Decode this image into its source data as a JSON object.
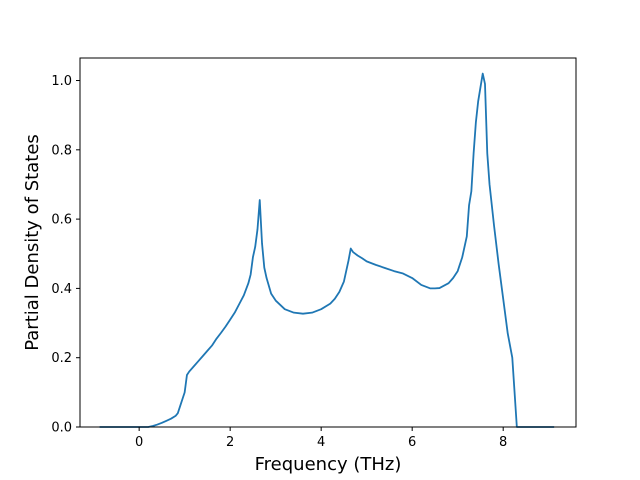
{
  "chart_data": {
    "type": "line",
    "title": "",
    "xlabel": "Frequency (THz)",
    "ylabel": "Partial Density of States",
    "xlim": [
      -1.3,
      9.6
    ],
    "ylim": [
      0.0,
      1.065
    ],
    "x_ticks": [
      0,
      2,
      4,
      6,
      8
    ],
    "x_tick_labels": [
      "0",
      "2",
      "4",
      "6",
      "8"
    ],
    "y_ticks": [
      0.0,
      0.2,
      0.4,
      0.6,
      0.8,
      1.0
    ],
    "y_tick_labels": [
      "0.0",
      "0.2",
      "0.4",
      "0.6",
      "0.8",
      "1.0"
    ],
    "grid": false,
    "line_color": "#1f77b4",
    "series": [
      {
        "x": [
          -0.85,
          0.2,
          0.3,
          0.4,
          0.5,
          0.6,
          0.7,
          0.8,
          0.85,
          0.9,
          0.95,
          1.0,
          1.05,
          1.1,
          1.2,
          1.3,
          1.4,
          1.5,
          1.6,
          1.7,
          1.8,
          1.9,
          2.0,
          2.1,
          2.2,
          2.3,
          2.4,
          2.45,
          2.5,
          2.55,
          2.6,
          2.65,
          2.7,
          2.75,
          2.8,
          2.9,
          3.0,
          3.2,
          3.4,
          3.6,
          3.8,
          4.0,
          4.2,
          4.3,
          4.4,
          4.5,
          4.55,
          4.6,
          4.65,
          4.7,
          4.8,
          4.9,
          5.0,
          5.2,
          5.4,
          5.6,
          5.8,
          6.0,
          6.2,
          6.4,
          6.5,
          6.6,
          6.8,
          6.9,
          7.0,
          7.1,
          7.2,
          7.25,
          7.3,
          7.35,
          7.4,
          7.45,
          7.5,
          7.55,
          7.6,
          7.65,
          7.7,
          7.8,
          7.9,
          8.0,
          8.1,
          8.2,
          8.25,
          8.3,
          8.5,
          9.1
        ],
        "y": [
          0.0,
          0.0,
          0.003,
          0.007,
          0.012,
          0.018,
          0.024,
          0.032,
          0.04,
          0.06,
          0.08,
          0.1,
          0.15,
          0.16,
          0.175,
          0.19,
          0.205,
          0.22,
          0.235,
          0.255,
          0.272,
          0.29,
          0.31,
          0.33,
          0.355,
          0.38,
          0.415,
          0.44,
          0.49,
          0.52,
          0.57,
          0.655,
          0.53,
          0.46,
          0.43,
          0.385,
          0.365,
          0.34,
          0.33,
          0.327,
          0.33,
          0.34,
          0.356,
          0.37,
          0.39,
          0.42,
          0.45,
          0.48,
          0.515,
          0.505,
          0.495,
          0.487,
          0.478,
          0.468,
          0.459,
          0.45,
          0.443,
          0.43,
          0.41,
          0.4,
          0.4,
          0.401,
          0.415,
          0.43,
          0.45,
          0.49,
          0.55,
          0.64,
          0.68,
          0.79,
          0.88,
          0.94,
          0.98,
          1.02,
          0.99,
          0.79,
          0.7,
          0.58,
          0.47,
          0.37,
          0.27,
          0.2,
          0.1,
          0.0,
          0.0,
          0.0
        ]
      }
    ]
  }
}
